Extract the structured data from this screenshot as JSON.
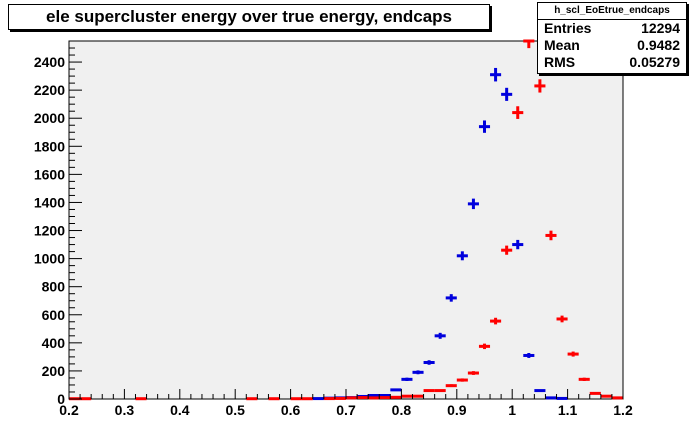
{
  "title": "ele supercluster energy over true energy, endcaps",
  "stats": {
    "name": "h_scl_EoEtrue_endcaps",
    "rows": [
      {
        "label": "Entries",
        "value": "12294"
      },
      {
        "label": "Mean",
        "value": "0.9482"
      },
      {
        "label": "RMS",
        "value": "0.05279"
      }
    ]
  },
  "chart_data": {
    "type": "histogram",
    "xlim": [
      0.2,
      1.2
    ],
    "ylim": [
      0,
      2550
    ],
    "x_ticks": [
      "0.2",
      "0.3",
      "0.4",
      "0.5",
      "0.6",
      "0.7",
      "0.8",
      "0.9",
      "1",
      "1.1",
      "1.2"
    ],
    "y_ticks": [
      "0",
      "200",
      "400",
      "600",
      "800",
      "1000",
      "1200",
      "1400",
      "1600",
      "1800",
      "2000",
      "2200",
      "2400"
    ],
    "bin_width": 0.02,
    "frame_fill": "#f0f0f0",
    "series": [
      {
        "color": "#0000dd",
        "points": [
          [
            0.65,
            3
          ],
          [
            0.67,
            6
          ],
          [
            0.69,
            8
          ],
          [
            0.71,
            10
          ],
          [
            0.73,
            18
          ],
          [
            0.75,
            25
          ],
          [
            0.77,
            25
          ],
          [
            0.79,
            65
          ],
          [
            0.81,
            140
          ],
          [
            0.83,
            190
          ],
          [
            0.85,
            260
          ],
          [
            0.87,
            450
          ],
          [
            0.89,
            720
          ],
          [
            0.91,
            1020
          ],
          [
            0.93,
            1390
          ],
          [
            0.95,
            1940
          ],
          [
            0.97,
            2310
          ],
          [
            0.99,
            2170
          ],
          [
            1.01,
            1100
          ],
          [
            1.03,
            310
          ],
          [
            1.05,
            60
          ],
          [
            1.07,
            8
          ],
          [
            1.09,
            4
          ]
        ]
      },
      {
        "color": "#ff0000",
        "points": [
          [
            0.21,
            2
          ],
          [
            0.23,
            2
          ],
          [
            0.33,
            2
          ],
          [
            0.53,
            2
          ],
          [
            0.57,
            2
          ],
          [
            0.61,
            2
          ],
          [
            0.63,
            2
          ],
          [
            0.67,
            3
          ],
          [
            0.69,
            4
          ],
          [
            0.71,
            8
          ],
          [
            0.73,
            10
          ],
          [
            0.75,
            8
          ],
          [
            0.77,
            10
          ],
          [
            0.79,
            12
          ],
          [
            0.81,
            20
          ],
          [
            0.83,
            20
          ],
          [
            0.85,
            60
          ],
          [
            0.87,
            60
          ],
          [
            0.89,
            95
          ],
          [
            0.91,
            135
          ],
          [
            0.93,
            185
          ],
          [
            0.95,
            375
          ],
          [
            0.97,
            555
          ],
          [
            0.99,
            1060
          ],
          [
            1.01,
            2040
          ],
          [
            1.03,
            2580
          ],
          [
            1.05,
            2230
          ],
          [
            1.07,
            1165
          ],
          [
            1.09,
            570
          ],
          [
            1.11,
            320
          ],
          [
            1.13,
            140
          ],
          [
            1.15,
            40
          ],
          [
            1.17,
            20
          ],
          [
            1.19,
            8
          ]
        ]
      }
    ]
  }
}
